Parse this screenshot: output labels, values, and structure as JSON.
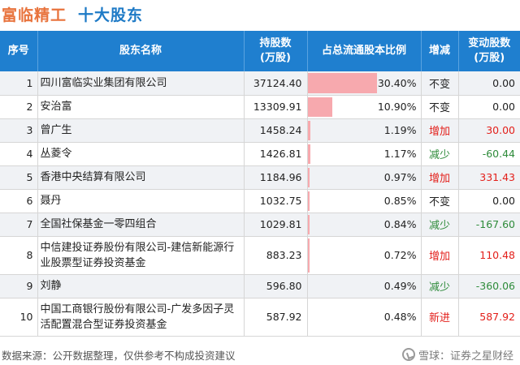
{
  "title": {
    "company": "富临精工",
    "subject": "十大股东"
  },
  "table": {
    "headers": {
      "index": "序号",
      "name": "股东名称",
      "shares": "持股数",
      "shares_unit": "(万股)",
      "ratio": "占总流通股本比例",
      "change": "增减",
      "delta": "变动股数",
      "delta_unit": "(万股)"
    },
    "rows": [
      {
        "index": "1",
        "name": "四川富临实业集团有限公司",
        "shares": "37124.40",
        "ratio": "30.40%",
        "ratio_value": 30.4,
        "change": "不变",
        "change_type": "flat",
        "delta": "0.00"
      },
      {
        "index": "2",
        "name": "安治富",
        "shares": "13309.91",
        "ratio": "10.90%",
        "ratio_value": 10.9,
        "change": "不变",
        "change_type": "flat",
        "delta": "0.00"
      },
      {
        "index": "3",
        "name": "曾广生",
        "shares": "1458.24",
        "ratio": "1.19%",
        "ratio_value": 1.19,
        "change": "增加",
        "change_type": "up",
        "delta": "30.00"
      },
      {
        "index": "4",
        "name": "丛菱令",
        "shares": "1426.81",
        "ratio": "1.17%",
        "ratio_value": 1.17,
        "change": "减少",
        "change_type": "down",
        "delta": "-60.44"
      },
      {
        "index": "5",
        "name": "香港中央结算有限公司",
        "shares": "1184.96",
        "ratio": "0.97%",
        "ratio_value": 0.97,
        "change": "增加",
        "change_type": "up",
        "delta": "331.43"
      },
      {
        "index": "6",
        "name": "聂丹",
        "shares": "1032.75",
        "ratio": "0.85%",
        "ratio_value": 0.85,
        "change": "不变",
        "change_type": "flat",
        "delta": "0.00"
      },
      {
        "index": "7",
        "name": "全国社保基金一零四组合",
        "shares": "1029.81",
        "ratio": "0.84%",
        "ratio_value": 0.84,
        "change": "减少",
        "change_type": "down",
        "delta": "-167.60"
      },
      {
        "index": "8",
        "name": "中信建投证券股份有限公司-建信新能源行业股票型证券投资基金",
        "shares": "883.23",
        "ratio": "0.72%",
        "ratio_value": 0.72,
        "change": "增加",
        "change_type": "up",
        "delta": "110.48"
      },
      {
        "index": "9",
        "name": "刘静",
        "shares": "596.80",
        "ratio": "0.49%",
        "ratio_value": 0.49,
        "change": "减少",
        "change_type": "down",
        "delta": "-360.06"
      },
      {
        "index": "10",
        "name": "中国工商银行股份有限公司-广发多因子灵活配置混合型证券投资基金",
        "shares": "587.92",
        "ratio": "0.48%",
        "ratio_value": 0.48,
        "change": "新进",
        "change_type": "new",
        "delta": "587.92"
      }
    ]
  },
  "chart_data": {
    "type": "table",
    "columns": [
      "序号",
      "股东名称",
      "持股数(万股)",
      "占总流通股本比例",
      "增减",
      "变动股数(万股)"
    ],
    "rows": [
      [
        "1",
        "四川富临实业集团有限公司",
        37124.4,
        30.4,
        "不变",
        0.0
      ],
      [
        "2",
        "安治富",
        13309.91,
        10.9,
        "不变",
        0.0
      ],
      [
        "3",
        "曾广生",
        1458.24,
        1.19,
        "增加",
        30.0
      ],
      [
        "4",
        "丛菱令",
        1426.81,
        1.17,
        "减少",
        -60.44
      ],
      [
        "5",
        "香港中央结算有限公司",
        1184.96,
        0.97,
        "增加",
        331.43
      ],
      [
        "6",
        "聂丹",
        1032.75,
        0.85,
        "不变",
        0.0
      ],
      [
        "7",
        "全国社保基金一零四组合",
        1029.81,
        0.84,
        "减少",
        -167.6
      ],
      [
        "8",
        "中信建投证券股份有限公司-建信新能源行业股票型证券投资基金",
        883.23,
        0.72,
        "增加",
        110.48
      ],
      [
        "9",
        "刘静",
        596.8,
        0.49,
        "减少",
        -360.06
      ],
      [
        "10",
        "中国工商银行股份有限公司-广发多因子灵活配置混合型证券投资基金",
        587.92,
        0.48,
        "新进",
        587.92
      ]
    ],
    "ratio_bar_max": 50
  },
  "colors": {
    "header_bg": "#1f7fcf",
    "bar": "#f7a9ae",
    "up": "#e3201b",
    "down": "#2e8b3a",
    "title_company": "#e8733c",
    "title_subject": "#1e7ac6"
  },
  "watermark": "证券之星",
  "footer": {
    "source": "数据来源：公开数据整理，仅供参考不构成投资建议",
    "brand": "雪球：证券之星财经",
    "brand_icon": "snowball-icon"
  }
}
